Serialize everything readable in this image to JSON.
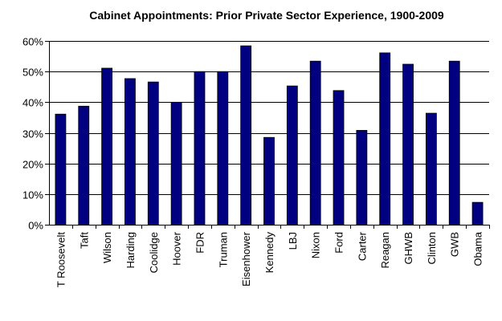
{
  "chart_data": {
    "type": "bar",
    "title": "Cabinet Appointments: Prior Private Sector Experience, 1900-2009",
    "xlabel": "",
    "ylabel": "",
    "ylim": [
      0,
      60
    ],
    "yticks": [
      "0%",
      "10%",
      "20%",
      "30%",
      "40%",
      "50%",
      "60%"
    ],
    "grid": true,
    "bar_color": "#000080",
    "categories": [
      "T Roosevelt",
      "Taft",
      "Wilson",
      "Harding",
      "Coolidge",
      "Hoover",
      "FDR",
      "Truman",
      "Eisenhower",
      "Kennedy",
      "LBJ",
      "Nixon",
      "Ford",
      "Carter",
      "Reagan",
      "GHWB",
      "Clinton",
      "GWB",
      "Obama"
    ],
    "values": [
      36.1,
      38.7,
      51.1,
      47.7,
      46.6,
      40.0,
      50.0,
      50.0,
      58.4,
      28.5,
      45.3,
      53.4,
      43.8,
      30.8,
      56.1,
      52.4,
      36.4,
      53.4,
      7.3
    ]
  }
}
